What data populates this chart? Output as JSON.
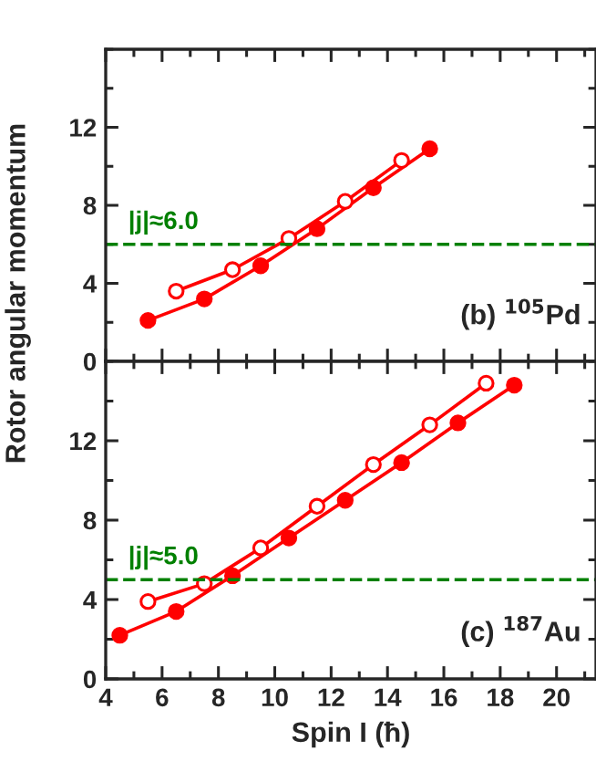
{
  "chart_data": [
    {
      "type": "line",
      "ylabel": "Rotor angular momentum",
      "xlim": [
        4,
        21.4
      ],
      "xticks": [
        4,
        6,
        8,
        10,
        12,
        14,
        16,
        18,
        20
      ],
      "ylim": [
        0,
        16
      ],
      "yticks": [
        0,
        4,
        8,
        12
      ],
      "tick_labels": "y",
      "marker": "circle",
      "line_style": "solid",
      "grid": false,
      "legend": false,
      "annotations": [
        "(b) $^{105}$Pd"
      ],
      "ref_lines": [
        {
          "axis": "y",
          "value": 6.0,
          "label": "|j|≈6.0",
          "color": "#008000",
          "line_style": "dashed"
        }
      ],
      "series": [
        {
          "color": "#ff0000",
          "x": [
            5.5,
            7.5,
            9.5,
            11.5,
            13.5,
            15.5
          ],
          "values": [
            2.1,
            3.2,
            4.9,
            6.8,
            8.9,
            10.9
          ]
        },
        {
          "color": "#ff0000",
          "x": [
            6.5,
            8.5,
            10.5,
            12.5,
            14.5
          ],
          "values": [
            3.6,
            4.7,
            6.3,
            8.2,
            10.3
          ]
        }
      ]
    },
    {
      "type": "line",
      "xlabel": "Spin I (ħ)",
      "xlim": [
        4,
        21.4
      ],
      "xticks": [
        4,
        6,
        8,
        10,
        12,
        14,
        16,
        18,
        20
      ],
      "ylim": [
        0,
        16
      ],
      "yticks": [
        0,
        4,
        8,
        12
      ],
      "marker": "circle",
      "line_style": "solid",
      "grid": false,
      "legend": false,
      "annotations": [
        "(c) $^{187}$Au"
      ],
      "ref_lines": [
        {
          "axis": "y",
          "value": 5.0,
          "label": "|j|≈5.0",
          "color": "#008000",
          "line_style": "dashed"
        }
      ],
      "series": [
        {
          "color": "#ff0000",
          "x": [
            4.5,
            6.5,
            8.5,
            10.5,
            12.5,
            14.5,
            16.5,
            18.5
          ],
          "values": [
            2.2,
            3.4,
            5.2,
            7.1,
            9.0,
            10.9,
            12.9,
            14.8
          ]
        },
        {
          "color": "#ff0000",
          "x": [
            5.5,
            7.5,
            9.5,
            11.5,
            13.5,
            15.5,
            17.5
          ],
          "values": [
            3.9,
            4.8,
            6.6,
            8.7,
            10.8,
            12.8,
            14.9
          ]
        }
      ]
    }
  ]
}
